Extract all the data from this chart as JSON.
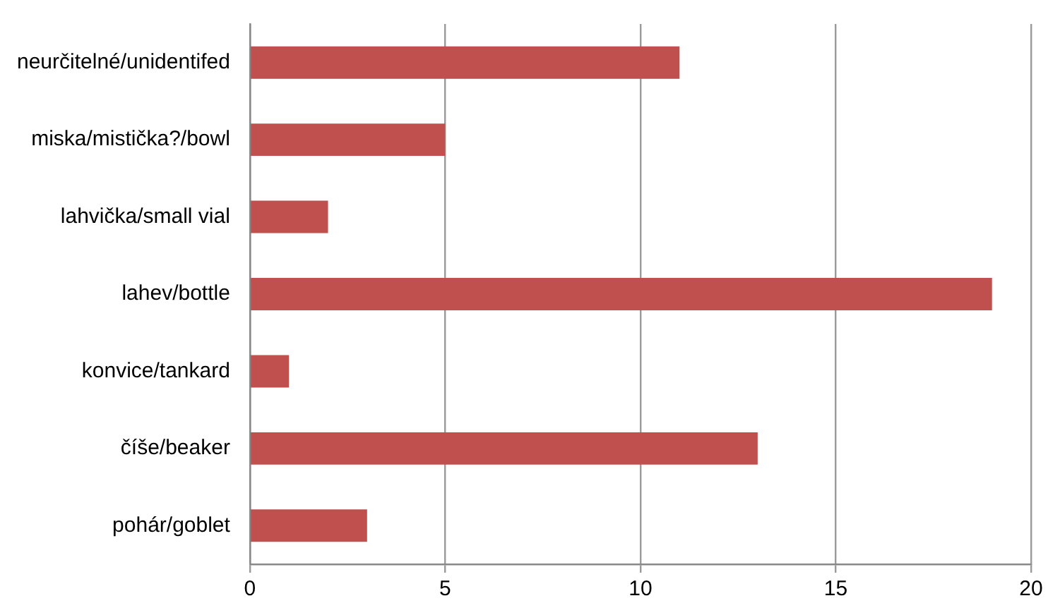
{
  "chart_data": {
    "type": "bar",
    "orientation": "horizontal",
    "categories": [
      "neurčitelné/unidentifed",
      "miska/mistička?/bowl",
      "lahvička/small vial",
      "lahev/bottle",
      "konvice/tankard",
      "číše/beaker",
      "pohár/goblet"
    ],
    "values": [
      11,
      5,
      2,
      19,
      1,
      13,
      3
    ],
    "color": "#c0504d",
    "xlim": [
      0,
      20
    ],
    "xticks": [
      0,
      5,
      10,
      15,
      20
    ],
    "grid": "x",
    "legend": false
  }
}
